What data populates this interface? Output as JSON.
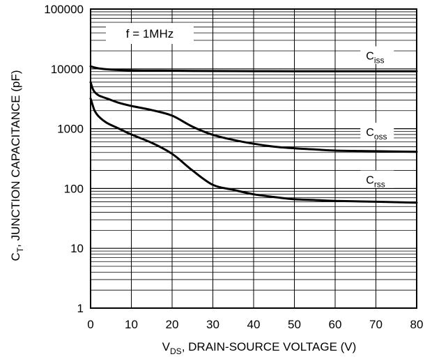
{
  "chart_data": {
    "type": "line",
    "scale": {
      "x": "linear",
      "y": "log"
    },
    "xlim": [
      0,
      80
    ],
    "ylim": [
      1,
      100000
    ],
    "grid": true,
    "x_ticks": [
      "0",
      "10",
      "20",
      "30",
      "40",
      "50",
      "60",
      "70",
      "80"
    ],
    "y_ticks": [
      "1",
      "10",
      "100",
      "1000",
      "10000",
      "100000"
    ],
    "xlabel": {
      "pre": "V",
      "sub": "DS",
      "post": ", DRAIN-SOURCE VOLTAGE (V)"
    },
    "ylabel": {
      "pre": "C",
      "sub": "T",
      "post": ", JUNCTION CAPACITANCE (pF)"
    },
    "annotation": "f = 1MHz",
    "series": [
      {
        "base": "C",
        "sub": "iss",
        "x": [
          0,
          2,
          5,
          10,
          20,
          30,
          40,
          50,
          60,
          70,
          80
        ],
        "y": [
          11000,
          10200,
          9700,
          9400,
          9300,
          9200,
          9150,
          9100,
          9100,
          9100,
          9100
        ]
      },
      {
        "base": "C",
        "sub": "oss",
        "x": [
          0,
          0.5,
          1,
          2,
          4,
          7,
          10,
          15,
          20,
          25,
          30,
          35,
          40,
          45,
          50,
          55,
          60,
          70,
          80
        ],
        "y": [
          6000,
          4700,
          4100,
          3600,
          3200,
          2700,
          2400,
          2050,
          1650,
          1080,
          790,
          650,
          560,
          500,
          470,
          450,
          430,
          420,
          410
        ]
      },
      {
        "base": "C",
        "sub": "rss",
        "x": [
          0,
          0.5,
          1,
          2,
          4,
          7,
          10,
          15,
          20,
          25,
          30,
          35,
          40,
          45,
          50,
          55,
          60,
          70,
          80
        ],
        "y": [
          3200,
          2500,
          2000,
          1600,
          1250,
          1000,
          800,
          580,
          380,
          200,
          115,
          95,
          80,
          72,
          66,
          64,
          62,
          60,
          58
        ]
      }
    ]
  }
}
